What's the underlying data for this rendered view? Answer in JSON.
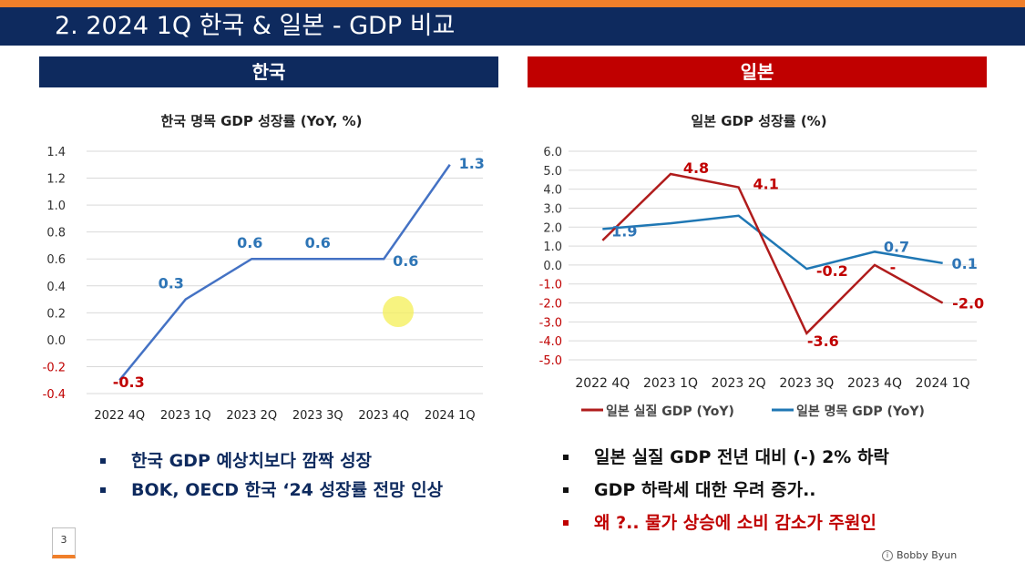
{
  "slide": {
    "title": "2.   2024 1Q 한국 & 일본 - GDP 비교",
    "page_number": "3",
    "credit": "Bobby Byun",
    "colors": {
      "navy": "#0e2a5e",
      "orange": "#f07f2a",
      "red": "#c00000"
    }
  },
  "korea": {
    "header": "한국",
    "bullets": [
      "한국 GDP 예상치보다 깜짝 성장",
      "BOK, OECD  한국   ‘24 성장률 전망 인상"
    ]
  },
  "japan": {
    "header": "일본",
    "bullets": [
      "일본 실질 GDP 전년 대비 (-) 2% 하락",
      "GDP 하락세 대한 우려 증가..",
      "왜 ?.. 물가 상승에 소비 감소가 주원인"
    ]
  },
  "chart_data": [
    {
      "type": "line",
      "title": "한국 명목 GDP 성장률 (YoY, %)",
      "categories": [
        "2022 4Q",
        "2023 1Q",
        "2023 2Q",
        "2023 3Q",
        "2023 4Q",
        "2024 1Q"
      ],
      "ylim": [
        -0.4,
        1.4
      ],
      "yticks": [
        "1.4",
        "1.2",
        "1.0",
        "0.8",
        "0.6",
        "0.4",
        "0.2",
        "0.0",
        "-0.2",
        "-0.4"
      ],
      "grid": true,
      "series": [
        {
          "values": [
            -0.3,
            0.3,
            0.6,
            0.6,
            0.6,
            1.3
          ],
          "labels": [
            "-0.3",
            "0.3",
            "0.6",
            "0.6",
            "0.6",
            "1.3"
          ],
          "color": "#4472c4"
        }
      ]
    },
    {
      "type": "line",
      "title": "일본 GDP 성장률 (%)",
      "categories": [
        "2022 4Q",
        "2023 1Q",
        "2023 2Q",
        "2023 3Q",
        "2023 4Q",
        "2024 1Q"
      ],
      "ylim": [
        -5.0,
        6.0
      ],
      "yticks": [
        "6.0",
        "5.0",
        "4.0",
        "3.0",
        "2.0",
        "1.0",
        "0.0",
        "-1.0",
        "-2.0",
        "-3.0",
        "-4.0",
        "-5.0"
      ],
      "grid": true,
      "legend": "bottom",
      "series": [
        {
          "name": "일본 실질 GDP (YoY)",
          "values": [
            1.3,
            4.8,
            4.1,
            -3.6,
            0.0,
            -2.0
          ],
          "labels": [
            "",
            "4.8",
            "4.1",
            "-3.6",
            "-",
            "-2.0"
          ],
          "color": "#b01c1c"
        },
        {
          "name": "일본 명목 GDP (YoY)",
          "values": [
            1.9,
            2.2,
            2.6,
            -0.2,
            0.7,
            0.1
          ],
          "labels": [
            "1.9",
            "",
            "",
            "-0.2",
            "0.7",
            "0.1"
          ],
          "color": "#1f77b4"
        }
      ]
    }
  ]
}
